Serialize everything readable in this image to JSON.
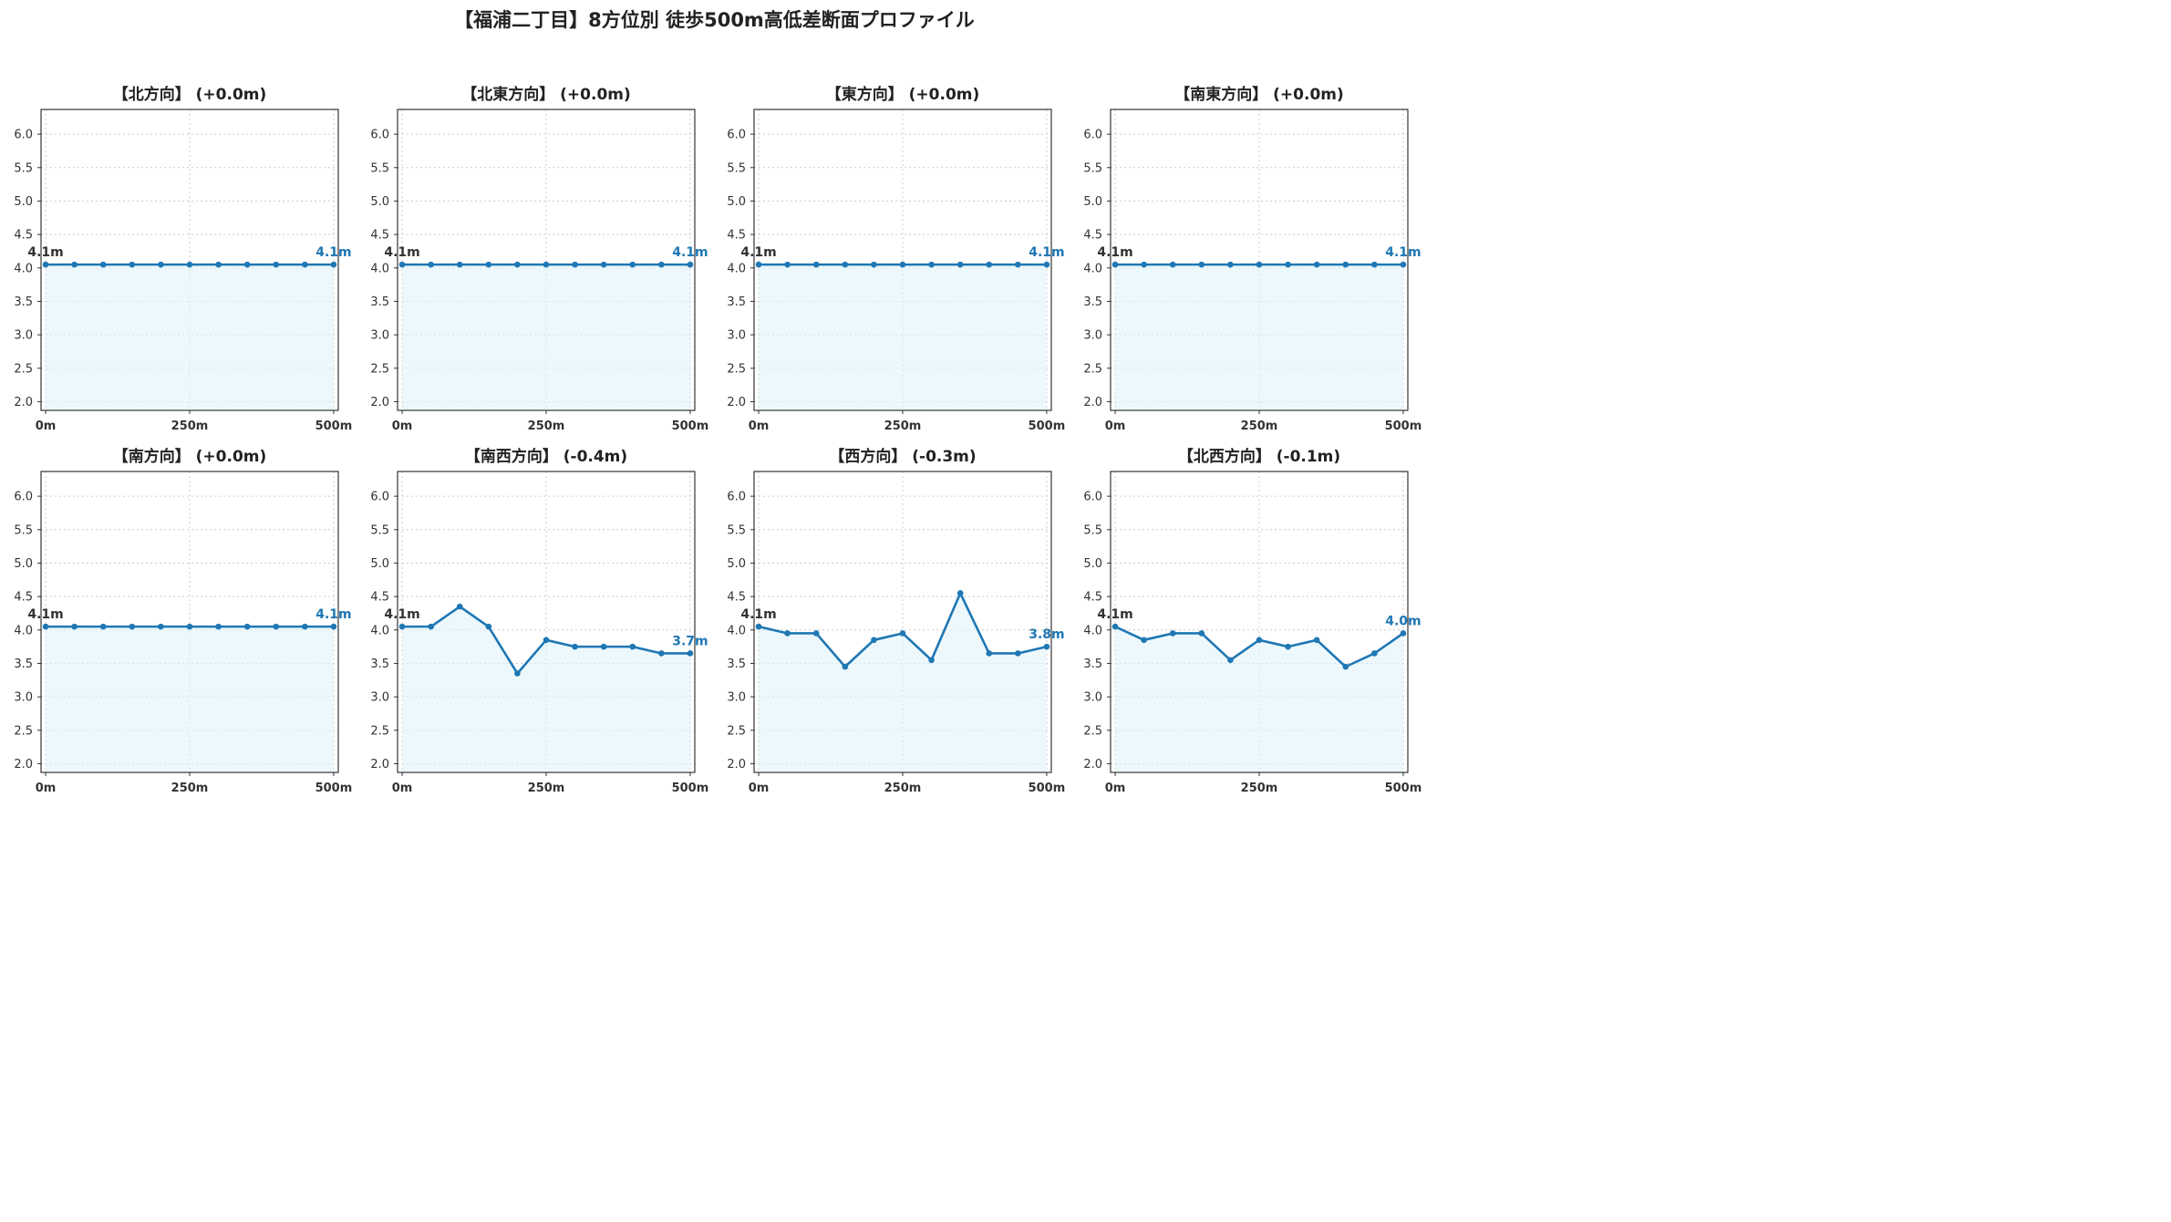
{
  "page_title": "【福浦二丁目】8方位別 徒歩500m高低差断面プロファイル",
  "colors": {
    "line": "#1f77b4",
    "fill": "#e0f3fa",
    "start_label": "#333333",
    "end_label": "#1f77b4",
    "grid": "#cccccc"
  },
  "chart_data": [
    {
      "type": "area",
      "title": "【北方向】 (+0.0m)",
      "x": [
        0,
        50,
        100,
        150,
        200,
        250,
        300,
        350,
        400,
        450,
        500
      ],
      "values": [
        4.05,
        4.05,
        4.05,
        4.05,
        4.05,
        4.05,
        4.05,
        4.05,
        4.05,
        4.05,
        4.05
      ],
      "xticks": [
        "0m",
        "250m",
        "500m"
      ],
      "yticks": [
        "2.0",
        "2.5",
        "3.0",
        "3.5",
        "4.0",
        "4.5",
        "5.0",
        "5.5",
        "6.0"
      ],
      "ylim": [
        1.87,
        6.37
      ],
      "xlim": [
        -8,
        508
      ],
      "grid": true,
      "start_label": "4.1m",
      "end_label": "4.1m"
    },
    {
      "type": "area",
      "title": "【北東方向】 (+0.0m)",
      "x": [
        0,
        50,
        100,
        150,
        200,
        250,
        300,
        350,
        400,
        450,
        500
      ],
      "values": [
        4.05,
        4.05,
        4.05,
        4.05,
        4.05,
        4.05,
        4.05,
        4.05,
        4.05,
        4.05,
        4.05
      ],
      "xticks": [
        "0m",
        "250m",
        "500m"
      ],
      "yticks": [
        "2.0",
        "2.5",
        "3.0",
        "3.5",
        "4.0",
        "4.5",
        "5.0",
        "5.5",
        "6.0"
      ],
      "ylim": [
        1.87,
        6.37
      ],
      "xlim": [
        -8,
        508
      ],
      "grid": true,
      "start_label": "4.1m",
      "end_label": "4.1m"
    },
    {
      "type": "area",
      "title": "【東方向】 (+0.0m)",
      "x": [
        0,
        50,
        100,
        150,
        200,
        250,
        300,
        350,
        400,
        450,
        500
      ],
      "values": [
        4.05,
        4.05,
        4.05,
        4.05,
        4.05,
        4.05,
        4.05,
        4.05,
        4.05,
        4.05,
        4.05
      ],
      "xticks": [
        "0m",
        "250m",
        "500m"
      ],
      "yticks": [
        "2.0",
        "2.5",
        "3.0",
        "3.5",
        "4.0",
        "4.5",
        "5.0",
        "5.5",
        "6.0"
      ],
      "ylim": [
        1.87,
        6.37
      ],
      "xlim": [
        -8,
        508
      ],
      "grid": true,
      "start_label": "4.1m",
      "end_label": "4.1m"
    },
    {
      "type": "area",
      "title": "【南東方向】 (+0.0m)",
      "x": [
        0,
        50,
        100,
        150,
        200,
        250,
        300,
        350,
        400,
        450,
        500
      ],
      "values": [
        4.05,
        4.05,
        4.05,
        4.05,
        4.05,
        4.05,
        4.05,
        4.05,
        4.05,
        4.05,
        4.05
      ],
      "xticks": [
        "0m",
        "250m",
        "500m"
      ],
      "yticks": [
        "2.0",
        "2.5",
        "3.0",
        "3.5",
        "4.0",
        "4.5",
        "5.0",
        "5.5",
        "6.0"
      ],
      "ylim": [
        1.87,
        6.37
      ],
      "xlim": [
        -8,
        508
      ],
      "grid": true,
      "start_label": "4.1m",
      "end_label": "4.1m"
    },
    {
      "type": "area",
      "title": "【南方向】 (+0.0m)",
      "x": [
        0,
        50,
        100,
        150,
        200,
        250,
        300,
        350,
        400,
        450,
        500
      ],
      "values": [
        4.05,
        4.05,
        4.05,
        4.05,
        4.05,
        4.05,
        4.05,
        4.05,
        4.05,
        4.05,
        4.05
      ],
      "xticks": [
        "0m",
        "250m",
        "500m"
      ],
      "yticks": [
        "2.0",
        "2.5",
        "3.0",
        "3.5",
        "4.0",
        "4.5",
        "5.0",
        "5.5",
        "6.0"
      ],
      "ylim": [
        1.87,
        6.37
      ],
      "xlim": [
        -8,
        508
      ],
      "grid": true,
      "start_label": "4.1m",
      "end_label": "4.1m"
    },
    {
      "type": "area",
      "title": "【南西方向】 (-0.4m)",
      "x": [
        0,
        50,
        100,
        150,
        200,
        250,
        300,
        350,
        400,
        450,
        500
      ],
      "values": [
        4.05,
        4.05,
        4.35,
        4.05,
        3.35,
        3.85,
        3.75,
        3.75,
        3.75,
        3.65,
        3.65
      ],
      "xticks": [
        "0m",
        "250m",
        "500m"
      ],
      "yticks": [
        "2.0",
        "2.5",
        "3.0",
        "3.5",
        "4.0",
        "4.5",
        "5.0",
        "5.5",
        "6.0"
      ],
      "ylim": [
        1.87,
        6.37
      ],
      "xlim": [
        -8,
        508
      ],
      "grid": true,
      "start_label": "4.1m",
      "end_label": "3.7m"
    },
    {
      "type": "area",
      "title": "【西方向】 (-0.3m)",
      "x": [
        0,
        50,
        100,
        150,
        200,
        250,
        300,
        350,
        400,
        450,
        500
      ],
      "values": [
        4.05,
        3.95,
        3.95,
        3.45,
        3.85,
        3.95,
        3.55,
        4.55,
        3.65,
        3.65,
        3.75
      ],
      "xticks": [
        "0m",
        "250m",
        "500m"
      ],
      "yticks": [
        "2.0",
        "2.5",
        "3.0",
        "3.5",
        "4.0",
        "4.5",
        "5.0",
        "5.5",
        "6.0"
      ],
      "ylim": [
        1.87,
        6.37
      ],
      "xlim": [
        -8,
        508
      ],
      "grid": true,
      "start_label": "4.1m",
      "end_label": "3.8m"
    },
    {
      "type": "area",
      "title": "【北西方向】 (-0.1m)",
      "x": [
        0,
        50,
        100,
        150,
        200,
        250,
        300,
        350,
        400,
        450,
        500
      ],
      "values": [
        4.05,
        3.85,
        3.95,
        3.95,
        3.55,
        3.85,
        3.75,
        3.85,
        3.45,
        3.65,
        3.95
      ],
      "xticks": [
        "0m",
        "250m",
        "500m"
      ],
      "yticks": [
        "2.0",
        "2.5",
        "3.0",
        "3.5",
        "4.0",
        "4.5",
        "5.0",
        "5.5",
        "6.0"
      ],
      "ylim": [
        1.87,
        6.37
      ],
      "xlim": [
        -8,
        508
      ],
      "grid": true,
      "start_label": "4.1m",
      "end_label": "4.0m"
    }
  ]
}
